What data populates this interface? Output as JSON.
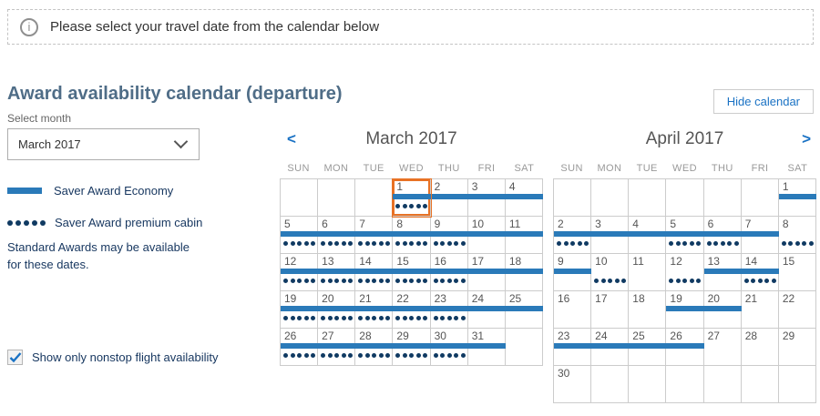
{
  "banner": {
    "text": "Please select your travel date from the calendar below"
  },
  "header": {
    "title": "Award availability calendar (departure)",
    "hide_button": "Hide calendar"
  },
  "month_select": {
    "label": "Select month",
    "value": "March 2017"
  },
  "legend": {
    "economy": "Saver Award Economy",
    "premium": "Saver Award premium cabin",
    "note_line1": "Standard Awards may be available",
    "note_line2": "for these dates."
  },
  "nonstop": {
    "label": "Show only nonstop flight availability",
    "checked": true
  },
  "nav": {
    "prev_icon": "<",
    "next_icon": ">"
  },
  "day_headers": [
    "SUN",
    "MON",
    "TUE",
    "WED",
    "THU",
    "FRI",
    "SAT"
  ],
  "colors": {
    "economy_bar": "#2a7ab9",
    "premium_dot": "#103a62",
    "selected_border": "#e87225",
    "link_blue": "#1a72c4"
  },
  "calendars": [
    {
      "title": "March 2017",
      "show_prev": true,
      "show_next": false,
      "weeks": [
        [
          null,
          null,
          null,
          {
            "d": "1",
            "bar": true,
            "dots": true,
            "sel": true
          },
          {
            "d": "2",
            "bar": true
          },
          {
            "d": "3",
            "bar": true
          },
          {
            "d": "4",
            "bar": true
          }
        ],
        [
          {
            "d": "5",
            "bar": true,
            "dots": true
          },
          {
            "d": "6",
            "bar": true,
            "dots": true
          },
          {
            "d": "7",
            "bar": true,
            "dots": true
          },
          {
            "d": "8",
            "bar": true,
            "dots": true
          },
          {
            "d": "9",
            "bar": true,
            "dots": true
          },
          {
            "d": "10",
            "bar": true
          },
          {
            "d": "11",
            "bar": true
          }
        ],
        [
          {
            "d": "12",
            "bar": true,
            "dots": true
          },
          {
            "d": "13",
            "bar": true,
            "dots": true
          },
          {
            "d": "14",
            "bar": true,
            "dots": true
          },
          {
            "d": "15",
            "bar": true,
            "dots": true
          },
          {
            "d": "16",
            "bar": true,
            "dots": true
          },
          {
            "d": "17",
            "bar": true
          },
          {
            "d": "18",
            "bar": true
          }
        ],
        [
          {
            "d": "19",
            "bar": true,
            "dots": true
          },
          {
            "d": "20",
            "bar": true,
            "dots": true
          },
          {
            "d": "21",
            "bar": true,
            "dots": true
          },
          {
            "d": "22",
            "bar": true,
            "dots": true
          },
          {
            "d": "23",
            "bar": true,
            "dots": true
          },
          {
            "d": "24",
            "bar": true
          },
          {
            "d": "25",
            "bar": true
          }
        ],
        [
          {
            "d": "26",
            "bar": true,
            "dots": true
          },
          {
            "d": "27",
            "bar": true,
            "dots": true
          },
          {
            "d": "28",
            "bar": true,
            "dots": true
          },
          {
            "d": "29",
            "bar": true,
            "dots": true
          },
          {
            "d": "30",
            "bar": true,
            "dots": true
          },
          {
            "d": "31",
            "bar": true
          },
          null
        ]
      ]
    },
    {
      "title": "April 2017",
      "show_prev": false,
      "show_next": true,
      "weeks": [
        [
          null,
          null,
          null,
          null,
          null,
          null,
          {
            "d": "1",
            "bar": true
          }
        ],
        [
          {
            "d": "2",
            "bar": true,
            "dots": true
          },
          {
            "d": "3",
            "bar": true
          },
          {
            "d": "4",
            "bar": true
          },
          {
            "d": "5",
            "bar": true,
            "dots": true
          },
          {
            "d": "6",
            "bar": true,
            "dots": true
          },
          {
            "d": "7",
            "bar": true
          },
          {
            "d": "8",
            "dots": true
          }
        ],
        [
          {
            "d": "9",
            "bar": true
          },
          {
            "d": "10",
            "dots": true
          },
          {
            "d": "11"
          },
          {
            "d": "12",
            "dots": true
          },
          {
            "d": "13",
            "bar": true
          },
          {
            "d": "14",
            "bar": true,
            "dots": true
          },
          {
            "d": "15"
          }
        ],
        [
          {
            "d": "16"
          },
          {
            "d": "17"
          },
          {
            "d": "18"
          },
          {
            "d": "19",
            "bar": true
          },
          {
            "d": "20",
            "bar": true
          },
          {
            "d": "21"
          },
          {
            "d": "22"
          }
        ],
        [
          {
            "d": "23",
            "bar": true
          },
          {
            "d": "24",
            "bar": true
          },
          {
            "d": "25",
            "bar": true
          },
          {
            "d": "26",
            "bar": true
          },
          {
            "d": "27"
          },
          {
            "d": "28"
          },
          {
            "d": "29"
          }
        ],
        [
          {
            "d": "30"
          },
          null,
          null,
          null,
          null,
          null,
          null
        ]
      ]
    }
  ]
}
